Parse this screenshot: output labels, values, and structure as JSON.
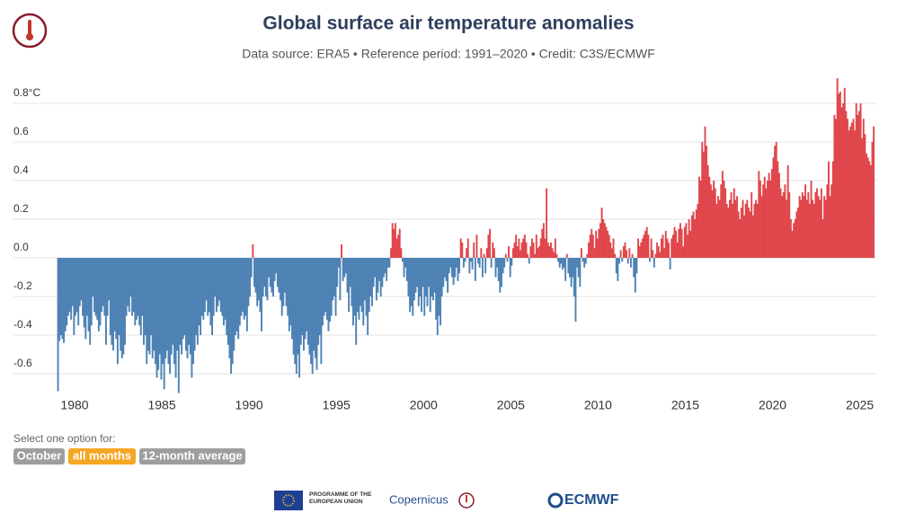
{
  "chart_data": {
    "type": "monthly-bar",
    "title": "Global surface air temperature anomalies",
    "subtitle": "Data source: ERA5 • Reference period: 1991–2020 • Credit: C3S/ECMWF",
    "colors": {
      "positive": "#e0474c",
      "negative": "#4e82b4"
    },
    "grid": true,
    "xlim": [
      1979,
      2026
    ],
    "xticks": [
      1980,
      1985,
      1990,
      1995,
      2000,
      2005,
      2010,
      2015,
      2020,
      2025
    ],
    "ylim": [
      -0.7,
      0.95
    ],
    "yticks": [
      {
        "value": 0.8,
        "label": "0.8°C"
      },
      0.6,
      0.4,
      0.2,
      {
        "value": 0,
        "label": "0.0"
      },
      -0.2,
      -0.4,
      -0.6
    ],
    "years": [
      1979,
      1980,
      1981,
      1982,
      1983,
      1984,
      1985,
      1986,
      1987,
      1988,
      1989,
      1990,
      1991,
      1992,
      1993,
      1994,
      1995,
      1996,
      1997,
      1998,
      1999,
      2000,
      2001,
      2002,
      2003,
      2004,
      2005,
      2006,
      2007,
      2008,
      2009,
      2010,
      2011,
      2012,
      2013,
      2014,
      2015,
      2016,
      2017,
      2018,
      2019,
      2020,
      2021,
      2022,
      2023,
      2024,
      2025
    ],
    "values": [
      [
        -0.69,
        -0.43,
        -0.4,
        -0.42,
        -0.44,
        -0.38,
        -0.35,
        -0.3,
        -0.28,
        -0.32,
        -0.25,
        -0.4
      ],
      [
        -0.3,
        -0.28,
        -0.35,
        -0.25,
        -0.22,
        -0.3,
        -0.36,
        -0.42,
        -0.3,
        -0.38,
        -0.45,
        -0.35
      ],
      [
        -0.2,
        -0.28,
        -0.3,
        -0.32,
        -0.38,
        -0.35,
        -0.28,
        -0.25,
        -0.3,
        -0.45,
        -0.3,
        -0.22
      ],
      [
        -0.4,
        -0.45,
        -0.48,
        -0.38,
        -0.42,
        -0.55,
        -0.4,
        -0.48,
        -0.52,
        -0.5,
        -0.45,
        -0.3
      ],
      [
        -0.25,
        -0.28,
        -0.2,
        -0.3,
        -0.28,
        -0.35,
        -0.32,
        -0.3,
        -0.35,
        -0.4,
        -0.3,
        -0.45
      ],
      [
        -0.4,
        -0.55,
        -0.48,
        -0.5,
        -0.4,
        -0.52,
        -0.48,
        -0.55,
        -0.62,
        -0.58,
        -0.5,
        -0.63
      ],
      [
        -0.55,
        -0.68,
        -0.52,
        -0.48,
        -0.55,
        -0.6,
        -0.5,
        -0.45,
        -0.55,
        -0.62,
        -0.48,
        -0.7
      ],
      [
        -0.45,
        -0.5,
        -0.42,
        -0.4,
        -0.48,
        -0.52,
        -0.45,
        -0.5,
        -0.62,
        -0.55,
        -0.48,
        -0.4
      ],
      [
        -0.45,
        -0.35,
        -0.4,
        -0.3,
        -0.32,
        -0.28,
        -0.22,
        -0.3,
        -0.28,
        -0.35,
        -0.4,
        -0.3
      ],
      [
        -0.2,
        -0.28,
        -0.25,
        -0.22,
        -0.28,
        -0.3,
        -0.35,
        -0.32,
        -0.4,
        -0.45,
        -0.52,
        -0.6
      ],
      [
        -0.55,
        -0.48,
        -0.4,
        -0.38,
        -0.42,
        -0.35,
        -0.3,
        -0.28,
        -0.32,
        -0.3,
        -0.38,
        -0.25
      ],
      [
        -0.2,
        -0.1,
        0.07,
        -0.15,
        -0.18,
        -0.25,
        -0.22,
        -0.28,
        -0.38,
        -0.2,
        -0.15,
        -0.2
      ],
      [
        -0.22,
        -0.1,
        -0.15,
        -0.18,
        -0.2,
        -0.12,
        -0.08,
        -0.15,
        -0.18,
        -0.22,
        -0.3,
        -0.25
      ],
      [
        -0.18,
        -0.25,
        -0.3,
        -0.38,
        -0.35,
        -0.42,
        -0.5,
        -0.55,
        -0.6,
        -0.5,
        -0.62,
        -0.45
      ],
      [
        -0.4,
        -0.48,
        -0.42,
        -0.38,
        -0.45,
        -0.5,
        -0.55,
        -0.6,
        -0.48,
        -0.52,
        -0.58,
        -0.45
      ],
      [
        -0.4,
        -0.55,
        -0.35,
        -0.3,
        -0.28,
        -0.32,
        -0.38,
        -0.33,
        -0.3,
        -0.22,
        -0.2,
        -0.3
      ],
      [
        -0.15,
        -0.05,
        -0.22,
        0.07,
        -0.12,
        -0.1,
        -0.08,
        -0.18,
        -0.28,
        -0.15,
        -0.25,
        -0.35
      ],
      [
        -0.3,
        -0.45,
        -0.28,
        -0.32,
        -0.25,
        -0.28,
        -0.35,
        -0.22,
        -0.3,
        -0.4,
        -0.28,
        -0.2
      ],
      [
        -0.25,
        -0.15,
        -0.1,
        -0.22,
        -0.18,
        -0.12,
        -0.2,
        -0.15,
        -0.1,
        -0.08,
        -0.12,
        -0.05
      ],
      [
        -0.05,
        0.05,
        0.18,
        0.15,
        0.18,
        0.1,
        0.12,
        0.15,
        0.05,
        -0.02,
        -0.1,
        -0.05
      ],
      [
        -0.12,
        -0.2,
        -0.28,
        -0.25,
        -0.3,
        -0.22,
        -0.18,
        -0.15,
        -0.25,
        -0.2,
        -0.28,
        -0.15
      ],
      [
        -0.3,
        -0.2,
        -0.25,
        -0.15,
        -0.28,
        -0.2,
        -0.22,
        -0.18,
        -0.32,
        -0.4,
        -0.3,
        -0.35
      ],
      [
        -0.2,
        -0.15,
        -0.1,
        -0.12,
        -0.18,
        -0.08,
        -0.05,
        -0.1,
        -0.14,
        -0.1,
        -0.05,
        -0.12
      ],
      [
        -0.08,
        0.1,
        0.08,
        -0.05,
        -0.02,
        0.05,
        0.1,
        -0.08,
        -0.02,
        -0.06,
        0.08,
        -0.12
      ],
      [
        0.12,
        -0.03,
        -0.05,
        0.05,
        -0.1,
        0.02,
        -0.08,
        0.05,
        0.12,
        0.15,
        -0.05,
        0.08
      ],
      [
        0.05,
        -0.1,
        -0.05,
        -0.12,
        -0.18,
        -0.15,
        -0.08,
        -0.05,
        0.02,
        -0.02,
        0.06,
        -0.1
      ],
      [
        -0.04,
        0.05,
        0.08,
        0.12,
        0.06,
        0.1,
        0.04,
        0.08,
        0.1,
        0.12,
        0.08,
        0.02
      ],
      [
        -0.03,
        0.06,
        0.1,
        0.08,
        0.02,
        0.12,
        0.05,
        0.06,
        0.1,
        0.15,
        0.18,
        0.1
      ],
      [
        0.36,
        0.08,
        0.06,
        0.08,
        0.05,
        0.03,
        0.1,
        0.02,
        -0.02,
        -0.05,
        -0.03,
        -0.06
      ],
      [
        -0.05,
        -0.12,
        0.02,
        -0.08,
        -0.1,
        -0.15,
        -0.1,
        -0.2,
        -0.33,
        -0.05,
        -0.1,
        -0.15
      ],
      [
        0.05,
        -0.02,
        -0.05,
        -0.03,
        0.02,
        0.08,
        0.12,
        0.15,
        0.12,
        0.05,
        0.14,
        0.1
      ],
      [
        0.15,
        0.18,
        0.26,
        0.2,
        0.18,
        0.16,
        0.14,
        0.12,
        0.08,
        0.05,
        0.1,
        0.02
      ],
      [
        -0.08,
        -0.12,
        -0.03,
        0.04,
        -0.02,
        0.06,
        0.08,
        0.04,
        -0.03,
        0.05,
        -0.05,
        0.02
      ],
      [
        -0.1,
        -0.18,
        -0.08,
        0.1,
        0.06,
        0.08,
        0.1,
        0.12,
        0.14,
        0.16,
        0.12,
        -0.02
      ],
      [
        0.1,
        0.04,
        -0.05,
        0.02,
        0.08,
        0.06,
        0.03,
        0.1,
        0.12,
        0.05,
        0.14,
        0.1
      ],
      [
        0.08,
        -0.06,
        0.1,
        0.12,
        0.16,
        0.14,
        0.08,
        0.15,
        0.18,
        0.15,
        0.06,
        0.16
      ],
      [
        0.18,
        0.12,
        0.2,
        0.14,
        0.22,
        0.24,
        0.2,
        0.25,
        0.28,
        0.42,
        0.4,
        0.6
      ],
      [
        0.55,
        0.68,
        0.58,
        0.48,
        0.42,
        0.38,
        0.35,
        0.4,
        0.36,
        0.28,
        0.32,
        0.3
      ],
      [
        0.38,
        0.45,
        0.4,
        0.36,
        0.28,
        0.26,
        0.3,
        0.34,
        0.28,
        0.36,
        0.3,
        0.32
      ],
      [
        0.24,
        0.2,
        0.26,
        0.3,
        0.22,
        0.28,
        0.3,
        0.26,
        0.24,
        0.34,
        0.22,
        0.28
      ],
      [
        0.3,
        0.28,
        0.45,
        0.4,
        0.32,
        0.38,
        0.42,
        0.36,
        0.4,
        0.44,
        0.4,
        0.46
      ],
      [
        0.52,
        0.58,
        0.6,
        0.5,
        0.44,
        0.36,
        0.32,
        0.34,
        0.38,
        0.3,
        0.48,
        0.34
      ],
      [
        0.2,
        0.14,
        0.18,
        0.2,
        0.24,
        0.26,
        0.32,
        0.3,
        0.34,
        0.32,
        0.38,
        0.3
      ],
      [
        0.34,
        0.28,
        0.4,
        0.3,
        0.28,
        0.34,
        0.36,
        0.32,
        0.3,
        0.36,
        0.2,
        0.32
      ],
      [
        0.3,
        0.38,
        0.5,
        0.32,
        0.38,
        0.5,
        0.74,
        0.72,
        0.93,
        0.85,
        0.86,
        0.78
      ],
      [
        0.8,
        0.88,
        0.76,
        0.72,
        0.66,
        0.68,
        0.7,
        0.72,
        0.66,
        0.8,
        0.74,
        0.76
      ],
      [
        0.8,
        0.62,
        0.72,
        0.64,
        0.54,
        0.52,
        0.5,
        0.48,
        0.6,
        0.68
      ]
    ]
  },
  "controls": {
    "label": "Select one option for:",
    "options": [
      "October",
      "all months",
      "12-month average"
    ]
  },
  "footer": {
    "eu": "PROGRAMME OF THE EUROPEAN UNION",
    "copernicus": "Copernicus",
    "ecmwf": "ECMWF"
  }
}
